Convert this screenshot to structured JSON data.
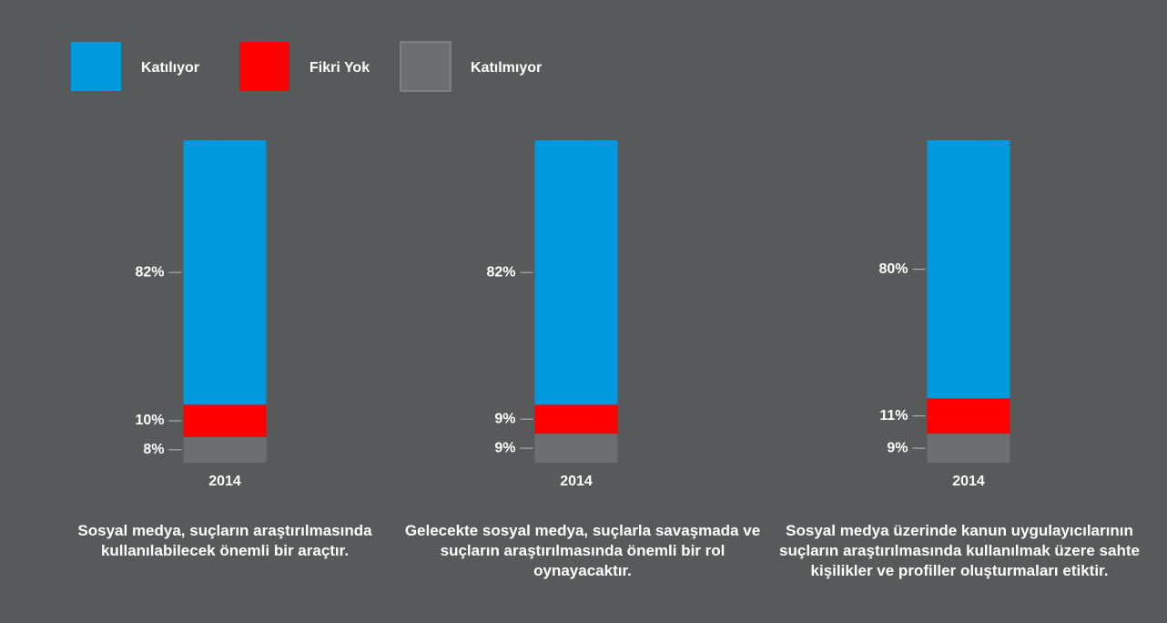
{
  "chart_data": {
    "type": "stacked-bar",
    "categories": [
      "2014",
      "2014",
      "2014"
    ],
    "captions": [
      "Sosyal medya, suçların araştırılmasında kullanılabilecek önemli bir araçtır.",
      "Gelecekte sosyal medya, suçlarla savaşmada ve suçların araştırılmasında önemli bir rol oynayacaktır.",
      "Sosyal medya üzerinde kanun uygulayıcılarının suçların araştırılmasında kullanılmak üzere sahte kişilikler ve profiller oluşturmaları etiktir."
    ],
    "ylim": [
      0,
      100
    ],
    "series": [
      {
        "name": "Katılıyor",
        "color": "#0099dd",
        "values": [
          82,
          82,
          80
        ],
        "value_labels": [
          "82%",
          "82%",
          "80%"
        ]
      },
      {
        "name": "Fikri Yok",
        "color": "#ff0000",
        "values": [
          10,
          9,
          11
        ],
        "value_labels": [
          "10%",
          "9%",
          "11%"
        ]
      },
      {
        "name": "Katılmıyor",
        "color": "#6d6e71",
        "values": [
          8,
          9,
          9
        ],
        "value_labels": [
          "8%",
          "9%",
          "9%"
        ]
      }
    ]
  }
}
